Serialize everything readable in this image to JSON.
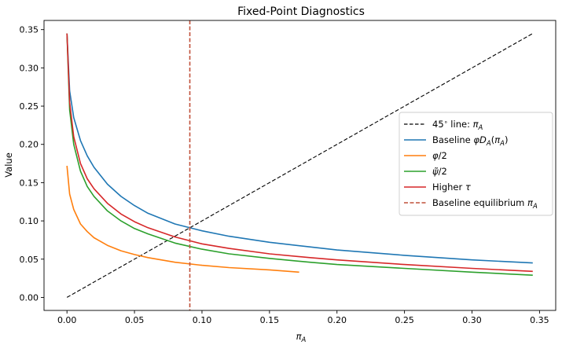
{
  "chart_data": {
    "type": "line",
    "title": "Fixed-Point Diagnostics",
    "xlabel": "π_A",
    "ylabel": "Value",
    "xlim": [
      -0.017,
      0.362
    ],
    "ylim": [
      -0.017,
      0.362
    ],
    "xticks": [
      0.0,
      0.05,
      0.1,
      0.15,
      0.2,
      0.25,
      0.3,
      0.35
    ],
    "xtick_labels": [
      "0.00",
      "0.05",
      "0.10",
      "0.15",
      "0.20",
      "0.25",
      "0.30",
      "0.35"
    ],
    "yticks": [
      0.0,
      0.05,
      0.1,
      0.15,
      0.2,
      0.25,
      0.3,
      0.35
    ],
    "ytick_labels": [
      "0.00",
      "0.05",
      "0.10",
      "0.15",
      "0.20",
      "0.25",
      "0.30",
      "0.35"
    ],
    "grid": false,
    "legend_position": "center-right",
    "series": [
      {
        "name": "45° line: π_A",
        "color": "#000000",
        "dash": "dashed",
        "x": [
          0.0,
          0.345
        ],
        "y": [
          0.0,
          0.345
        ]
      },
      {
        "name": "Baseline φD_A(π_A)",
        "color": "#1f77b4",
        "dash": "solid",
        "x": [
          0.0,
          0.002,
          0.005,
          0.01,
          0.015,
          0.02,
          0.03,
          0.04,
          0.05,
          0.06,
          0.08,
          0.1,
          0.12,
          0.15,
          0.18,
          0.2,
          0.25,
          0.3,
          0.345
        ],
        "y": [
          0.345,
          0.27,
          0.235,
          0.205,
          0.185,
          0.17,
          0.148,
          0.132,
          0.12,
          0.11,
          0.096,
          0.087,
          0.08,
          0.072,
          0.066,
          0.062,
          0.055,
          0.049,
          0.045
        ]
      },
      {
        "name": "φ/2",
        "color": "#ff7f0e",
        "dash": "solid",
        "x": [
          0.0,
          0.002,
          0.005,
          0.01,
          0.015,
          0.02,
          0.03,
          0.04,
          0.05,
          0.06,
          0.08,
          0.1,
          0.12,
          0.15,
          0.172
        ],
        "y": [
          0.172,
          0.135,
          0.115,
          0.096,
          0.086,
          0.078,
          0.068,
          0.061,
          0.056,
          0.052,
          0.046,
          0.042,
          0.039,
          0.036,
          0.033
        ]
      },
      {
        "name": "ψ̃/2",
        "color": "#2ca02c",
        "dash": "solid",
        "x": [
          0.0,
          0.002,
          0.005,
          0.01,
          0.015,
          0.02,
          0.03,
          0.04,
          0.05,
          0.06,
          0.08,
          0.1,
          0.12,
          0.15,
          0.18,
          0.2,
          0.25,
          0.3,
          0.345
        ],
        "y": [
          0.345,
          0.245,
          0.2,
          0.165,
          0.145,
          0.132,
          0.113,
          0.1,
          0.09,
          0.083,
          0.071,
          0.063,
          0.057,
          0.051,
          0.046,
          0.043,
          0.038,
          0.033,
          0.029
        ]
      },
      {
        "name": "Higher τ",
        "color": "#d62728",
        "dash": "solid",
        "x": [
          0.0,
          0.002,
          0.005,
          0.01,
          0.015,
          0.02,
          0.03,
          0.04,
          0.05,
          0.06,
          0.08,
          0.1,
          0.12,
          0.15,
          0.18,
          0.2,
          0.25,
          0.3,
          0.345
        ],
        "y": [
          0.345,
          0.255,
          0.21,
          0.175,
          0.155,
          0.142,
          0.123,
          0.109,
          0.099,
          0.091,
          0.079,
          0.07,
          0.064,
          0.057,
          0.052,
          0.049,
          0.043,
          0.038,
          0.034
        ]
      },
      {
        "name": "Baseline equilibrium π_A",
        "color": "#c0503a",
        "dash": "dashed",
        "vline": 0.091
      }
    ]
  }
}
